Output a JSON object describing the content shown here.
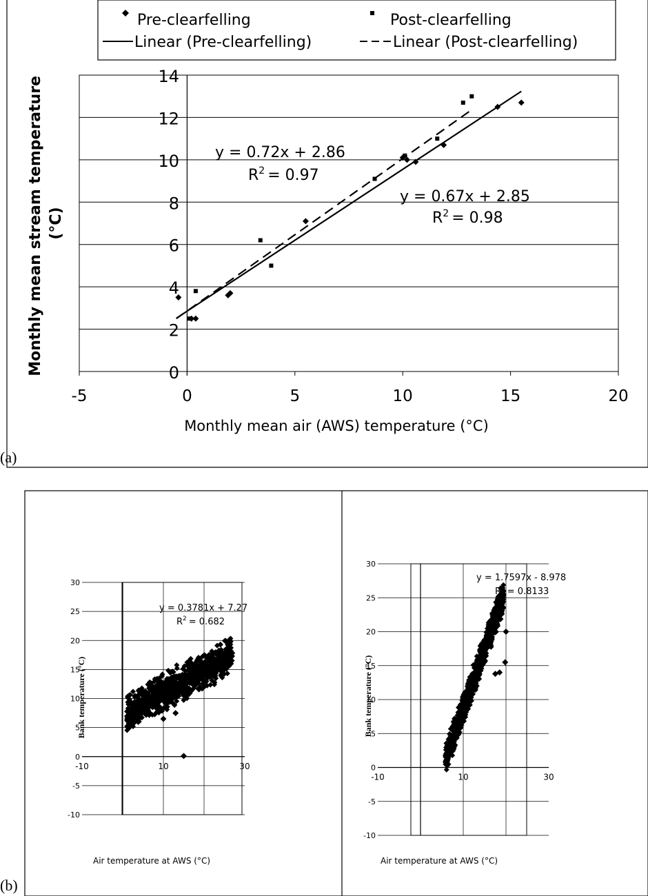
{
  "panel_a": {
    "label": "(a)",
    "legend": [
      "Pre-clearfelling",
      "Post-clearfelling",
      "Linear (Pre-clearfelling)",
      "Linear (Post-clearfelling)"
    ],
    "eq_post": "y = 0.72x + 2.86",
    "r2_post_prefix": "R",
    "r2_post_value": "= 0.97",
    "eq_pre": "y = 0.67x + 2.85",
    "r2_pre_prefix": "R",
    "r2_pre_value": "= 0.98",
    "r2_sup": "2"
  },
  "panel_b": {
    "label": "(b)",
    "left": {
      "eq": "y = 0.3781x + 7.27",
      "r2": "R",
      "r2_value": "= 0.682"
    },
    "right": {
      "eq": "y = 1.7597x - 8.978",
      "r2": "R",
      "r2_value": "= 0.8133"
    }
  },
  "chart_data": [
    {
      "type": "scatter",
      "title": "",
      "xlabel": "Monthly mean air (AWS) temperature (°C)",
      "ylabel": "Monthly mean stream temperature (°C)",
      "xlim": [
        -5,
        20
      ],
      "ylim": [
        0,
        14
      ],
      "xticks": [
        "-5",
        "0",
        "5",
        "10",
        "15",
        "20"
      ],
      "yticks": [
        "0",
        "2",
        "4",
        "6",
        "8",
        "10",
        "12",
        "14"
      ],
      "grid": "horizontal",
      "legend": "top",
      "series": [
        {
          "name": "Pre-clearfelling",
          "marker": "diamond",
          "points": [
            [
              -0.4,
              3.5
            ],
            [
              0.2,
              2.5
            ],
            [
              0.4,
              2.5
            ],
            [
              1.9,
              3.6
            ],
            [
              2.0,
              3.7
            ],
            [
              5.5,
              7.1
            ],
            [
              10.0,
              10.1
            ],
            [
              10.2,
              10.0
            ],
            [
              10.6,
              9.9
            ],
            [
              11.9,
              10.7
            ],
            [
              14.4,
              12.5
            ],
            [
              15.5,
              12.7
            ]
          ]
        },
        {
          "name": "Post-clearfelling",
          "marker": "square",
          "points": [
            [
              0.1,
              2.5
            ],
            [
              0.4,
              3.8
            ],
            [
              3.4,
              6.2
            ],
            [
              3.9,
              5.0
            ],
            [
              8.7,
              9.1
            ],
            [
              10.1,
              10.2
            ],
            [
              11.6,
              11.0
            ],
            [
              12.8,
              12.7
            ],
            [
              13.2,
              13.0
            ]
          ]
        },
        {
          "name": "Linear (Pre-clearfelling)",
          "type": "line",
          "style": "solid",
          "slope": 0.67,
          "intercept": 2.85,
          "x_range": [
            -0.5,
            15.5
          ]
        },
        {
          "name": "Linear (Post-clearfelling)",
          "type": "line",
          "style": "dashed",
          "slope": 0.72,
          "intercept": 2.86,
          "x_range": [
            -0.5,
            13.2
          ]
        }
      ],
      "annotations": [
        "y = 0.72x + 2.86",
        "R2 = 0.97",
        "y = 0.67x + 2.85",
        "R2 = 0.98"
      ]
    },
    {
      "type": "scatter",
      "title": "",
      "xlabel": "Air temperature at AWS (°C)",
      "ylabel": "Bank temperature (°C)",
      "xlim": [
        -10,
        30
      ],
      "ylim": [
        -10,
        30
      ],
      "xticks": [
        "-10",
        "10",
        "30"
      ],
      "yticks": [
        "-10",
        "-5",
        "0",
        "5",
        "10",
        "15",
        "20",
        "25",
        "30"
      ],
      "grid": "both",
      "series": [
        {
          "name": "",
          "marker": "diamond",
          "slope": 0.3781,
          "intercept": 7.27,
          "x_range": [
            1,
            27
          ],
          "spread": 2.2,
          "extra_points": [
            [
              15,
              0.1
            ],
            [
              10,
              6.5
            ],
            [
              13,
              7.5
            ]
          ]
        }
      ],
      "annotations": [
        "y = 0.3781x + 7.27",
        "R2 = 0.682"
      ]
    },
    {
      "type": "scatter",
      "title": "",
      "xlabel": "Air temperature at AWS (°C)",
      "ylabel": "Bank temperature (°C)",
      "xlim": [
        -10,
        30
      ],
      "ylim": [
        -10,
        30
      ],
      "xticks": [
        "-10",
        "10",
        "30"
      ],
      "yticks": [
        "-10",
        "-5",
        "0",
        "5",
        "10",
        "15",
        "20",
        "25",
        "30"
      ],
      "grid": "both",
      "series": [
        {
          "name": "",
          "marker": "diamond",
          "slope": 1.7597,
          "intercept": -8.978,
          "x_range": [
            5.8,
            19.5
          ],
          "spread": 1.6,
          "extra_points": [
            [
              18.5,
              14
            ],
            [
              19.8,
              15.5
            ],
            [
              20,
              20
            ],
            [
              17.5,
              13.8
            ]
          ]
        }
      ],
      "annotations": [
        "y = 1.7597x - 8.978",
        "R2 = 0.8133"
      ]
    }
  ]
}
